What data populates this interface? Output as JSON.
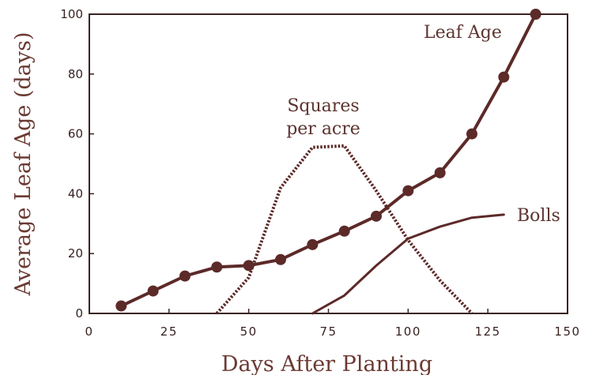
{
  "chart_data": {
    "type": "line",
    "title": "",
    "xlabel": "Days After Planting",
    "ylabel": "Average Leaf Age  (days)",
    "xlim": [
      0,
      150
    ],
    "ylim": [
      0,
      100
    ],
    "x_ticks": [
      "0",
      "25",
      "50",
      "75",
      "100",
      "125",
      "150"
    ],
    "x_tick_values": [
      0,
      25,
      50,
      75,
      100,
      125,
      150
    ],
    "y_ticks": [
      "0",
      "20",
      "40",
      "60",
      "80",
      "100"
    ],
    "y_tick_values": [
      0,
      20,
      40,
      60,
      80,
      100
    ],
    "grid": false,
    "colors": {
      "line": "#5c2a28",
      "axis": "#3a2222",
      "label": "#6b3a33"
    },
    "series": [
      {
        "name": "Leaf Age",
        "label_lines": [
          "Leaf Age"
        ],
        "style": "solid-markers",
        "x": [
          10,
          20,
          30,
          40,
          50,
          60,
          70,
          80,
          90,
          100,
          110,
          120,
          130,
          140
        ],
        "y": [
          2.5,
          7.5,
          12.5,
          15.5,
          16,
          18,
          23,
          27.5,
          32.5,
          41,
          47,
          60,
          79,
          100
        ]
      },
      {
        "name": "Squares per acre",
        "label_lines": [
          "Squares",
          "per acre"
        ],
        "style": "dotted",
        "x": [
          40,
          50,
          60,
          70,
          80,
          90,
          100,
          110,
          120
        ],
        "y": [
          0,
          12,
          42,
          55.5,
          56,
          41,
          24.5,
          11,
          0
        ]
      },
      {
        "name": "Bolls",
        "label_lines": [
          "Bolls"
        ],
        "style": "solid",
        "x": [
          70,
          80,
          90,
          100,
          110,
          120,
          130
        ],
        "y": [
          0,
          6,
          16,
          25,
          29,
          32,
          33
        ]
      }
    ]
  }
}
